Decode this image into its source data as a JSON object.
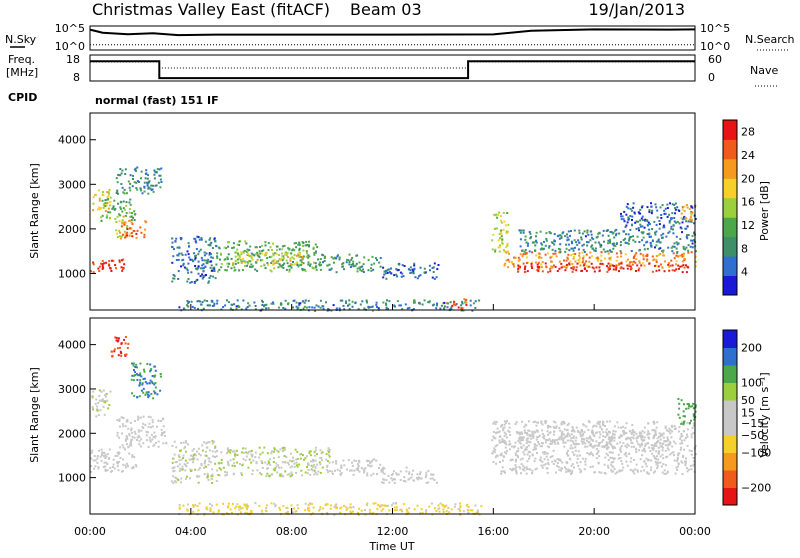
{
  "header": {
    "title": "Christmas Valley East (fitACF)",
    "beam": "Beam 03",
    "date": "19/Jan/2013"
  },
  "noise_panel": {
    "left_label": "N.Sky",
    "left_ticks": [
      "10^5",
      "10^0"
    ],
    "right_label": "N.Search",
    "right_ticks": [
      "10^5",
      "10^0"
    ]
  },
  "freq_panel": {
    "left_label_1": "Freq.",
    "left_label_2": "[MHz]",
    "left_ticks": [
      18,
      8
    ],
    "right_label": "Nave",
    "right_ticks": [
      60,
      0
    ]
  },
  "cpid": {
    "label": "CPID",
    "mode_text": "normal (fast) 151 IF"
  },
  "chart_data": [
    {
      "type": "line",
      "panel": "noise",
      "series": [
        {
          "name": "N.Sky",
          "x_hours": [
            0,
            0.5,
            1.5,
            2.5,
            3.5,
            5,
            8,
            12,
            16,
            17.5,
            20,
            23,
            24
          ],
          "y_level": [
            0.85,
            0.72,
            0.66,
            0.7,
            0.62,
            0.64,
            0.64,
            0.64,
            0.65,
            0.8,
            0.86,
            0.85,
            0.86
          ]
        },
        {
          "name": "N.Search",
          "x_hours": [
            0,
            24
          ],
          "y_level": [
            0.22,
            0.22
          ]
        }
      ]
    },
    {
      "type": "line",
      "panel": "frequency",
      "series": [
        {
          "name": "Freq.",
          "x_hours": [
            0,
            2.75,
            2.75,
            15,
            15,
            24
          ],
          "y": [
            15.6,
            15.6,
            9.1,
            9.1,
            15.6,
            15.6
          ]
        },
        {
          "name": "Nave",
          "x_hours": [
            0,
            2.75,
            2.75,
            15,
            15,
            24
          ],
          "y": [
            44,
            44,
            30,
            30,
            44,
            44
          ]
        }
      ]
    },
    {
      "type": "heatmap",
      "panel": "power",
      "xlabel": "",
      "ylabel": "Slant Range [km]",
      "xlim": [
        0,
        24
      ],
      "ylim": [
        180,
        4600
      ],
      "yticks": [
        1000,
        2000,
        3000,
        4000
      ],
      "colorbar": {
        "label": "Power [dB]",
        "ticks": [
          4,
          8,
          12,
          16,
          20,
          24,
          28
        ],
        "range": [
          0,
          30
        ],
        "colors": [
          "#1a1ad6",
          "#2e6fd0",
          "#3d8f6a",
          "#4aa84a",
          "#9ccf3c",
          "#f5d02a",
          "#f59a1e",
          "#f05a1a",
          "#e61414"
        ]
      },
      "regions": [
        {
          "x": [
            0,
            1.4
          ],
          "r": [
            1050,
            1350
          ],
          "power": 27
        },
        {
          "x": [
            1.0,
            1.6
          ],
          "r": [
            1800,
            2300
          ],
          "power": 18
        },
        {
          "x": [
            1.2,
            2.2
          ],
          "r": [
            1800,
            2200
          ],
          "power": 24
        },
        {
          "x": [
            0,
            0.8
          ],
          "r": [
            2400,
            2900
          ],
          "power": 18
        },
        {
          "x": [
            0.4,
            1.8
          ],
          "r": [
            2200,
            2700
          ],
          "power": 12
        },
        {
          "x": [
            1.0,
            2.8
          ],
          "r": [
            2800,
            3400
          ],
          "power": 8
        },
        {
          "x": [
            3.2,
            5
          ],
          "r": [
            800,
            1850
          ],
          "power": 6
        },
        {
          "x": [
            5,
            9
          ],
          "r": [
            1050,
            1750
          ],
          "power": 11
        },
        {
          "x": [
            5.5,
            8.5
          ],
          "r": [
            1200,
            1500
          ],
          "power": 17
        },
        {
          "x": [
            9,
            11.5
          ],
          "r": [
            1050,
            1450
          ],
          "power": 9
        },
        {
          "x": [
            11.5,
            13.8
          ],
          "r": [
            900,
            1250
          ],
          "power": 5
        },
        {
          "x": [
            3.5,
            15.5
          ],
          "r": [
            180,
            420
          ],
          "power": 7
        },
        {
          "x": [
            14.1,
            14.9
          ],
          "r": [
            220,
            450
          ],
          "power": 26
        },
        {
          "x": [
            15.9,
            16.6
          ],
          "r": [
            1500,
            2400
          ],
          "power": 16
        },
        {
          "x": [
            16.4,
            24
          ],
          "r": [
            1150,
            1500
          ],
          "power": 22
        },
        {
          "x": [
            16.6,
            23.7
          ],
          "r": [
            1050,
            1250
          ],
          "power": 28
        },
        {
          "x": [
            17,
            24
          ],
          "r": [
            1500,
            2000
          ],
          "power": 7
        },
        {
          "x": [
            21,
            24
          ],
          "r": [
            2000,
            2600
          ],
          "power": 5
        },
        {
          "x": [
            23.4,
            24
          ],
          "r": [
            2200,
            2600
          ],
          "power": 20
        }
      ]
    },
    {
      "type": "heatmap",
      "panel": "velocity",
      "xlabel": "Time UT",
      "ylabel": "Slant Range [km]",
      "xlim": [
        0,
        24
      ],
      "ylim": [
        180,
        4600
      ],
      "xticks": [
        "00:00",
        "04:00",
        "08:00",
        "12:00",
        "16:00",
        "20:00",
        "00:00"
      ],
      "yticks": [
        1000,
        2000,
        3000,
        4000
      ],
      "colorbar": {
        "label": "Velocity [m s⁻¹]",
        "ticks": [
          200,
          100,
          50,
          15,
          -15,
          -50,
          -100,
          -200
        ],
        "range": [
          -250,
          250
        ],
        "colors": [
          "#e61414",
          "#f05a1a",
          "#f59a1e",
          "#f5d02a",
          "#c8c8c8",
          "#c8c8c8",
          "#9ccf3c",
          "#4aa84a",
          "#2e6fd0",
          "#1a1ad6"
        ]
      },
      "regions": [
        {
          "x": [
            0,
            1.8
          ],
          "r": [
            1150,
            1700
          ],
          "velocity": 0
        },
        {
          "x": [
            0,
            0.8
          ],
          "r": [
            2400,
            3000
          ],
          "velocity": 40
        },
        {
          "x": [
            0.8,
            1.5
          ],
          "r": [
            3700,
            4200
          ],
          "velocity": -200
        },
        {
          "x": [
            1.6,
            2.8
          ],
          "r": [
            2800,
            3600
          ],
          "velocity": 150
        },
        {
          "x": [
            1.0,
            3.0
          ],
          "r": [
            1700,
            2400
          ],
          "velocity": 0
        },
        {
          "x": [
            3.2,
            5
          ],
          "r": [
            900,
            1850
          ],
          "velocity": 40
        },
        {
          "x": [
            5,
            9.5
          ],
          "r": [
            1050,
            1700
          ],
          "velocity": 45
        },
        {
          "x": [
            9.5,
            11.5
          ],
          "r": [
            1050,
            1450
          ],
          "velocity": 30
        },
        {
          "x": [
            11.5,
            13.8
          ],
          "r": [
            900,
            1250
          ],
          "velocity": 20
        },
        {
          "x": [
            3.5,
            15.5
          ],
          "r": [
            180,
            450
          ],
          "velocity": -60
        },
        {
          "x": [
            15.9,
            24
          ],
          "r": [
            1100,
            2300
          ],
          "velocity": 0
        },
        {
          "x": [
            17,
            23
          ],
          "r": [
            1700,
            2100
          ],
          "velocity": 0
        },
        {
          "x": [
            23.3,
            24
          ],
          "r": [
            2200,
            2800
          ],
          "velocity": 120
        }
      ]
    }
  ]
}
